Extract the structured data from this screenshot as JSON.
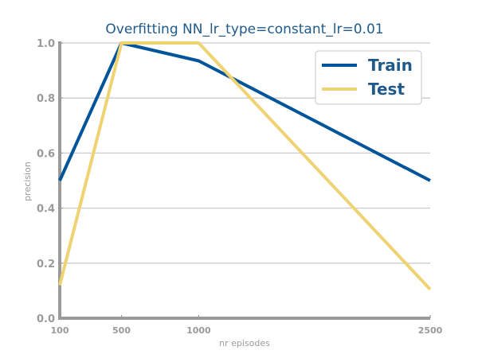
{
  "chart_data": {
    "type": "line",
    "title": "Overfitting NN_lr_type=constant_lr=0.01",
    "xlabel": "nr episodes",
    "ylabel": "precision",
    "x": [
      100,
      500,
      1000,
      2500
    ],
    "x_tick_labels": [
      "100",
      "500",
      "1000",
      "2500"
    ],
    "y_tick_labels": [
      "0.0",
      "0.2",
      "0.4",
      "0.6",
      "0.8",
      "1.0"
    ],
    "ylim": [
      0.0,
      1.0
    ],
    "xlim": [
      100,
      2500
    ],
    "grid": "horizontal",
    "legend_position": "top-right",
    "series": [
      {
        "name": "Train",
        "values": [
          0.5,
          1.0,
          0.935,
          0.5
        ],
        "color": "#00549a"
      },
      {
        "name": "Test",
        "values": [
          0.12,
          1.0,
          1.0,
          0.105
        ],
        "color": "#efd373"
      }
    ]
  }
}
